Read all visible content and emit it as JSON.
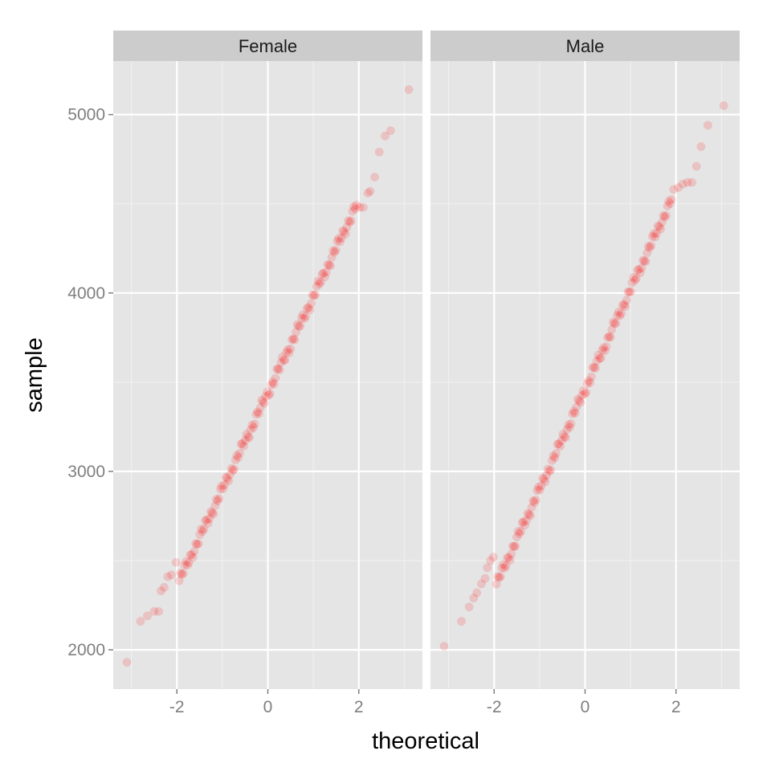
{
  "chart_data": {
    "type": "scatter",
    "xlabel": "theoretical",
    "ylabel": "sample",
    "xlim": [
      -3.4,
      3.4
    ],
    "ylim": [
      1780,
      5300
    ],
    "x_ticks": [
      -2,
      0,
      2
    ],
    "y_ticks": [
      2000,
      3000,
      4000,
      5000
    ],
    "grid": true,
    "point_color": "#ff0000",
    "panel_background": "#e5e5e5",
    "strip_background": "#cccccc",
    "panels": [
      {
        "name": "Female",
        "extremes": [
          [
            -3.1,
            1930
          ],
          [
            -2.8,
            2160
          ],
          [
            -2.65,
            2190
          ],
          [
            -2.5,
            2215
          ],
          [
            -2.4,
            2215
          ],
          [
            -2.35,
            2330
          ],
          [
            -2.28,
            2350
          ],
          [
            -2.2,
            2410
          ],
          [
            -2.12,
            2420
          ],
          [
            -2.02,
            2490
          ],
          [
            2.02,
            4480
          ],
          [
            2.1,
            4480
          ],
          [
            2.2,
            4560
          ],
          [
            2.25,
            4570
          ],
          [
            2.35,
            4650
          ],
          [
            2.45,
            4790
          ],
          [
            2.58,
            4880
          ],
          [
            2.7,
            4910
          ],
          [
            3.1,
            5140
          ]
        ],
        "body": {
          "n": 130,
          "x_start": -1.95,
          "x_end": 1.95,
          "mean": 3440,
          "sd": 540
        }
      },
      {
        "name": "Male",
        "extremes": [
          [
            -3.1,
            2020
          ],
          [
            -2.72,
            2160
          ],
          [
            -2.55,
            2240
          ],
          [
            -2.45,
            2290
          ],
          [
            -2.38,
            2320
          ],
          [
            -2.28,
            2370
          ],
          [
            -2.2,
            2400
          ],
          [
            -2.15,
            2460
          ],
          [
            -2.08,
            2500
          ],
          [
            -2.02,
            2520
          ],
          [
            1.95,
            4580
          ],
          [
            2.05,
            4590
          ],
          [
            2.15,
            4610
          ],
          [
            2.25,
            4620
          ],
          [
            2.35,
            4620
          ],
          [
            2.45,
            4710
          ],
          [
            2.55,
            4820
          ],
          [
            2.7,
            4940
          ],
          [
            3.05,
            5050
          ]
        ],
        "body": {
          "n": 130,
          "x_start": -1.95,
          "x_end": 1.9,
          "mean": 3460,
          "sd": 560
        }
      }
    ]
  }
}
